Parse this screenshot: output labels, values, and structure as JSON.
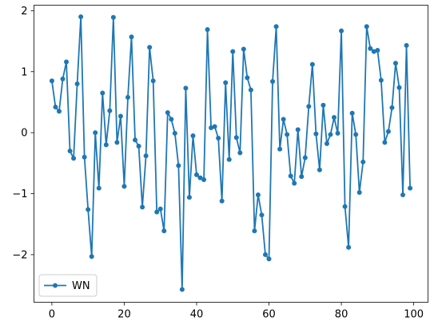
{
  "chart_data": {
    "type": "line",
    "title": "",
    "xlabel": "",
    "ylabel": "",
    "xlim": [
      -4.95,
      103.95
    ],
    "ylim": [
      -2.78,
      2.09
    ],
    "xticks": [
      0,
      20,
      40,
      60,
      80,
      100
    ],
    "yticks": [
      -2,
      -1,
      0,
      1,
      2
    ],
    "grid": false,
    "legend_position": "lower-left",
    "series": [
      {
        "name": "WN",
        "color": "#1f77b4",
        "marker": "circle",
        "x": [
          0,
          1,
          2,
          3,
          4,
          5,
          6,
          7,
          8,
          9,
          10,
          11,
          12,
          13,
          14,
          15,
          16,
          17,
          18,
          19,
          20,
          21,
          22,
          23,
          24,
          25,
          26,
          27,
          28,
          29,
          30,
          31,
          32,
          33,
          34,
          35,
          36,
          37,
          38,
          39,
          40,
          41,
          42,
          43,
          44,
          45,
          46,
          47,
          48,
          49,
          50,
          51,
          52,
          53,
          54,
          55,
          56,
          57,
          58,
          59,
          60,
          61,
          62,
          63,
          64,
          65,
          66,
          67,
          68,
          69,
          70,
          71,
          72,
          73,
          74,
          75,
          76,
          77,
          78,
          79,
          80,
          81,
          82,
          83,
          84,
          85,
          86,
          87,
          88,
          89,
          90,
          91,
          92,
          93,
          94,
          95,
          96,
          97,
          98,
          99
        ],
        "values": [
          0.85,
          0.42,
          0.35,
          0.88,
          1.16,
          -0.3,
          -0.42,
          0.8,
          1.9,
          -0.4,
          -1.26,
          -2.03,
          0.0,
          -0.91,
          0.65,
          -0.2,
          0.36,
          1.89,
          -0.16,
          0.27,
          -0.88,
          0.58,
          1.57,
          -0.12,
          -0.22,
          -1.22,
          -0.38,
          1.4,
          0.85,
          -1.3,
          -1.25,
          -1.61,
          0.33,
          0.22,
          -0.01,
          -0.54,
          -2.57,
          0.73,
          -1.06,
          -0.05,
          -0.69,
          -0.74,
          -0.77,
          1.69,
          0.08,
          0.1,
          -0.09,
          -1.12,
          0.82,
          -0.44,
          1.33,
          -0.08,
          -0.33,
          1.37,
          0.9,
          0.7,
          -1.61,
          -1.02,
          -1.35,
          -2.0,
          -2.07,
          0.84,
          1.74,
          -0.27,
          0.22,
          -0.03,
          -0.71,
          -0.83,
          0.05,
          -0.72,
          -0.41,
          0.43,
          1.12,
          -0.02,
          -0.61,
          0.45,
          -0.18,
          -0.03,
          0.25,
          -0.01,
          1.67,
          -1.21,
          -1.88,
          0.32,
          -0.03,
          -0.98,
          -0.48,
          1.74,
          1.38,
          1.33,
          1.35,
          0.86,
          -0.16,
          0.02,
          0.41,
          1.14,
          0.74,
          -1.02,
          1.43,
          -0.91
        ]
      }
    ]
  }
}
